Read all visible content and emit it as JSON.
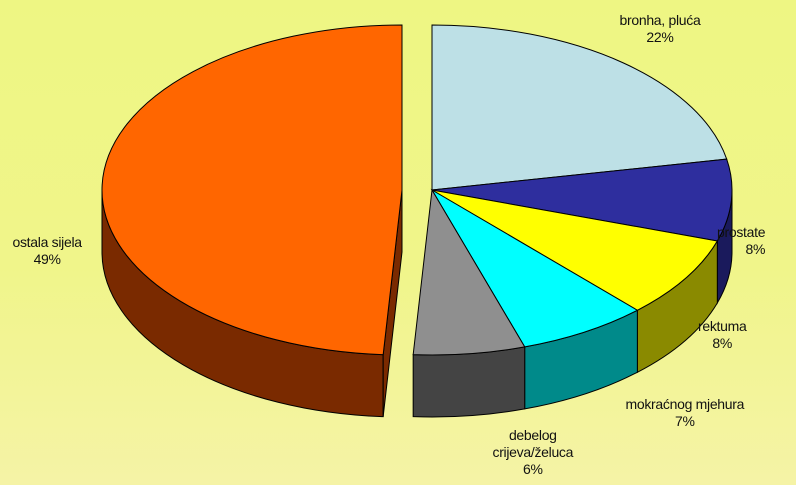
{
  "chart_data": {
    "type": "pie",
    "style": "3d-exploded",
    "title": "",
    "start_angle_deg": -90,
    "direction": "clockwise",
    "slices": [
      {
        "label": "bronha, pluća",
        "value": 22,
        "value_label": "22%",
        "color": "#bde0e6",
        "side_color": "#8fb4ba"
      },
      {
        "label": "prostate",
        "value": 8,
        "value_label": "8%",
        "color": "#2e2e9e",
        "side_color": "#1a1a5c"
      },
      {
        "label": "rektuma",
        "value": 8,
        "value_label": "8%",
        "color": "#ffff00",
        "side_color": "#8a8a00"
      },
      {
        "label": "mokraćnog mjehura",
        "value": 7,
        "value_label": "7%",
        "color": "#00ffff",
        "side_color": "#008a8a"
      },
      {
        "label": "debelog crijeva/želuca",
        "value": 6,
        "value_label": "6%",
        "label_lines": [
          "debelog",
          "crijeva/želuca"
        ],
        "color": "#8f8f8f",
        "side_color": "#444444"
      },
      {
        "label": "ostala sijela",
        "value": 49,
        "value_label": "49%",
        "color": "#ff6600",
        "side_color": "#7a2a00"
      }
    ]
  }
}
